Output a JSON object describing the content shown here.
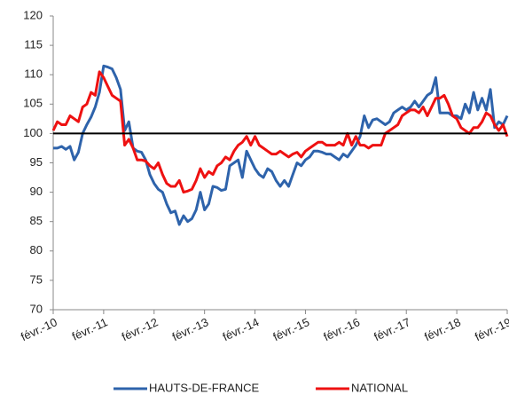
{
  "chart_data": {
    "type": "line",
    "categories": [
      "févr.-10",
      null,
      null,
      null,
      null,
      null,
      null,
      null,
      null,
      null,
      null,
      null,
      "févr.-11",
      null,
      null,
      null,
      null,
      null,
      null,
      null,
      null,
      null,
      null,
      null,
      "févr.-12",
      null,
      null,
      null,
      null,
      null,
      null,
      null,
      null,
      null,
      null,
      null,
      "févr.-13",
      null,
      null,
      null,
      null,
      null,
      null,
      null,
      null,
      null,
      null,
      null,
      "févr.-14",
      null,
      null,
      null,
      null,
      null,
      null,
      null,
      null,
      null,
      null,
      null,
      "févr.-15",
      null,
      null,
      null,
      null,
      null,
      null,
      null,
      null,
      null,
      null,
      null,
      "févr.-16",
      null,
      null,
      null,
      null,
      null,
      null,
      null,
      null,
      null,
      null,
      null,
      "févr.-17",
      null,
      null,
      null,
      null,
      null,
      null,
      null,
      null,
      null,
      null,
      null,
      "févr.-18",
      null,
      null,
      null,
      null,
      null,
      null,
      null,
      null,
      null,
      null,
      null,
      "févr.-19"
    ],
    "series": [
      {
        "name": "HAUTS-DE-FRANCE",
        "color": "#2e63ab",
        "values": [
          97.5,
          97.5,
          97.8,
          97.3,
          97.8,
          95.5,
          96.8,
          100,
          101.5,
          102.8,
          104.5,
          107,
          111.5,
          111.3,
          111,
          109.5,
          107.5,
          100.5,
          102,
          97.5,
          97,
          96.8,
          95.5,
          93,
          91.5,
          90.5,
          90,
          88,
          86.5,
          86.8,
          84.5,
          86,
          85,
          85.5,
          87,
          90,
          87,
          88,
          91,
          90.8,
          90.3,
          90.5,
          94.5,
          95,
          95.5,
          92.5,
          97,
          95.5,
          94,
          93,
          92.5,
          94,
          93.5,
          92,
          91,
          92,
          91,
          93,
          95,
          94.5,
          95.5,
          96,
          97,
          97,
          96.8,
          96.5,
          96.5,
          96,
          95.5,
          96.5,
          96,
          97,
          98,
          99.5,
          103,
          101,
          102.3,
          102.5,
          102,
          101.5,
          102,
          103.5,
          104,
          104.5,
          104,
          104.5,
          105.5,
          104.5,
          105.5,
          106.5,
          107,
          109.5,
          103.5,
          103.5,
          103.5,
          103,
          103,
          102.5,
          105,
          103.5,
          107,
          104,
          106,
          104,
          107.5,
          101,
          102,
          101.5,
          103
        ]
      },
      {
        "name": "NATIONAL",
        "color": "#ee1111",
        "values": [
          100.5,
          102,
          101.5,
          101.5,
          103,
          102.5,
          102,
          104.5,
          105,
          107,
          106.5,
          110.5,
          109.5,
          108,
          106.5,
          106,
          105.5,
          98,
          99,
          97.5,
          95.5,
          95.5,
          95.3,
          94.5,
          94,
          95,
          93,
          91.5,
          91,
          91,
          92,
          90,
          90.2,
          90.5,
          92,
          94,
          92.5,
          93.5,
          93,
          94.5,
          95,
          96,
          95.5,
          97,
          98,
          98.5,
          99.5,
          98,
          99.5,
          98,
          97.5,
          97,
          96.5,
          96.5,
          97,
          96.5,
          96,
          96.5,
          96.8,
          96,
          97,
          97.5,
          98,
          98.5,
          98.5,
          98,
          98,
          98,
          98.5,
          98,
          100,
          98,
          99.5,
          98,
          98,
          97.5,
          98,
          98,
          98,
          100,
          100.5,
          101,
          101.5,
          103,
          103.5,
          104,
          104,
          103.5,
          104.5,
          103,
          104.5,
          106,
          106,
          106.5,
          105,
          103,
          102.5,
          101,
          100.5,
          100,
          101,
          101,
          102,
          103.5,
          103,
          101.5,
          100.5,
          101.5,
          99.5
        ]
      }
    ],
    "reference_line": 100,
    "ylim": [
      70,
      120
    ],
    "yticks": [
      70,
      75,
      80,
      85,
      90,
      95,
      100,
      105,
      110,
      115,
      120
    ],
    "grid": false,
    "legend": "bottom"
  }
}
